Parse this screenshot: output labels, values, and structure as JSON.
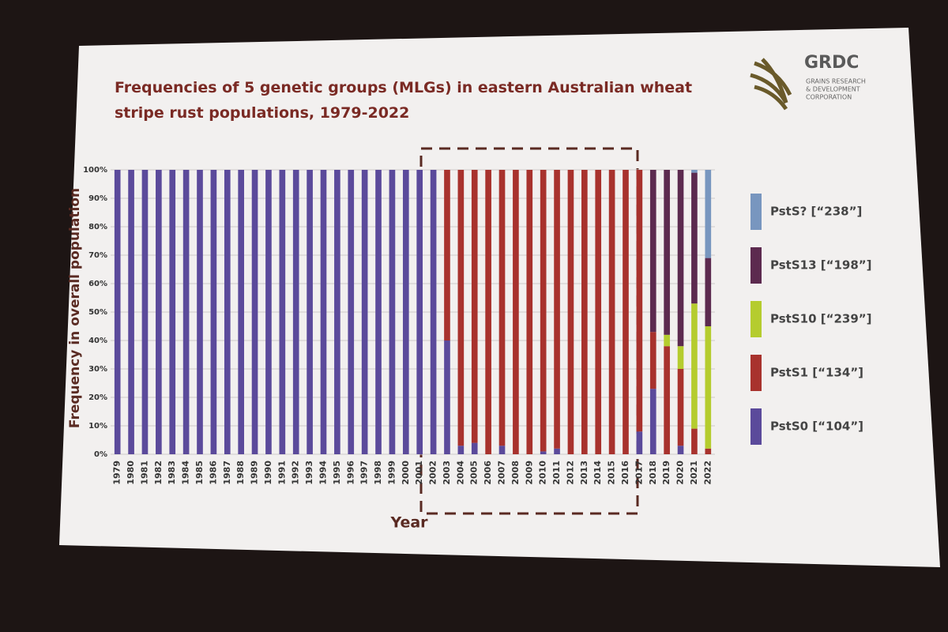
{
  "chart_data": {
    "type": "stacked_bar",
    "title": "Frequencies of 5 genetic groups (MLGs) in eastern Australian wheat stripe rust populations, 1979-2022",
    "y_label": "Frequency in overall population",
    "x_label": "Year",
    "categories": [
      "1979",
      "1980",
      "1981",
      "1982",
      "1983",
      "1984",
      "1985",
      "1986",
      "1987",
      "1988",
      "1989",
      "1990",
      "1991",
      "1992",
      "1993",
      "1994",
      "1995",
      "1996",
      "1997",
      "1998",
      "1999",
      "2000",
      "2001",
      "2002",
      "2003",
      "2004",
      "2005",
      "2006",
      "2007",
      "2008",
      "2009",
      "2010",
      "2011",
      "2012",
      "2013",
      "2014",
      "2015",
      "2016",
      "2017",
      "2018",
      "2019",
      "2020",
      "2021",
      "2022"
    ],
    "series": [
      {
        "name": "PstS0 [“104”]",
        "color": "#5b4a9b",
        "values": [
          100,
          100,
          100,
          100,
          100,
          100,
          100,
          100,
          100,
          100,
          100,
          100,
          100,
          100,
          100,
          100,
          100,
          100,
          100,
          100,
          100,
          100,
          100,
          100,
          40,
          3,
          4,
          0,
          3,
          0,
          0,
          1,
          2,
          0,
          0,
          0,
          0,
          0,
          8,
          23,
          0,
          3,
          0,
          0
        ]
      },
      {
        "name": "PstS1 [“134”]",
        "color": "#a8322d",
        "values": [
          0,
          0,
          0,
          0,
          0,
          0,
          0,
          0,
          0,
          0,
          0,
          0,
          0,
          0,
          0,
          0,
          0,
          0,
          0,
          0,
          0,
          0,
          0,
          0,
          60,
          97,
          96,
          100,
          97,
          100,
          100,
          99,
          98,
          100,
          100,
          100,
          100,
          100,
          92,
          20,
          38,
          27,
          9,
          2
        ]
      },
      {
        "name": "PstS10 [“239”]",
        "color": "#b5cc2e",
        "values": [
          0,
          0,
          0,
          0,
          0,
          0,
          0,
          0,
          0,
          0,
          0,
          0,
          0,
          0,
          0,
          0,
          0,
          0,
          0,
          0,
          0,
          0,
          0,
          0,
          0,
          0,
          0,
          0,
          0,
          0,
          0,
          0,
          0,
          0,
          0,
          0,
          0,
          0,
          0,
          0,
          4,
          8,
          44,
          43
        ]
      },
      {
        "name": "PstS13 [“198”]",
        "color": "#5c2a4f",
        "values": [
          0,
          0,
          0,
          0,
          0,
          0,
          0,
          0,
          0,
          0,
          0,
          0,
          0,
          0,
          0,
          0,
          0,
          0,
          0,
          0,
          0,
          0,
          0,
          0,
          0,
          0,
          0,
          0,
          0,
          0,
          0,
          0,
          0,
          0,
          0,
          0,
          0,
          0,
          0,
          57,
          58,
          62,
          46,
          24
        ]
      },
      {
        "name": "PstS? [“238”]",
        "color": "#7896bf",
        "values": [
          0,
          0,
          0,
          0,
          0,
          0,
          0,
          0,
          0,
          0,
          0,
          0,
          0,
          0,
          0,
          0,
          0,
          0,
          0,
          0,
          0,
          0,
          0,
          0,
          0,
          0,
          0,
          0,
          0,
          0,
          0,
          0,
          0,
          0,
          0,
          0,
          0,
          0,
          0,
          0,
          0,
          0,
          1,
          31
        ]
      }
    ],
    "ylim": [
      0,
      100
    ],
    "yticks": [
      {
        "value": 0,
        "label": "0%"
      },
      {
        "value": 10,
        "label": "10%"
      },
      {
        "value": 20,
        "label": "20%"
      },
      {
        "value": 30,
        "label": "30%"
      },
      {
        "value": 40,
        "label": "40%"
      },
      {
        "value": 50,
        "label": "50%"
      },
      {
        "value": 60,
        "label": "60%"
      },
      {
        "value": 70,
        "label": "70%"
      },
      {
        "value": 80,
        "label": "80%"
      },
      {
        "value": 90,
        "label": "90%"
      },
      {
        "value": 100,
        "label": "100%"
      }
    ],
    "grid": true
  },
  "logo": {
    "name": "GRDC",
    "lines": [
      "GRAINS RESEARCH",
      "& DEVELOPMENT",
      "CORPORATION"
    ]
  }
}
